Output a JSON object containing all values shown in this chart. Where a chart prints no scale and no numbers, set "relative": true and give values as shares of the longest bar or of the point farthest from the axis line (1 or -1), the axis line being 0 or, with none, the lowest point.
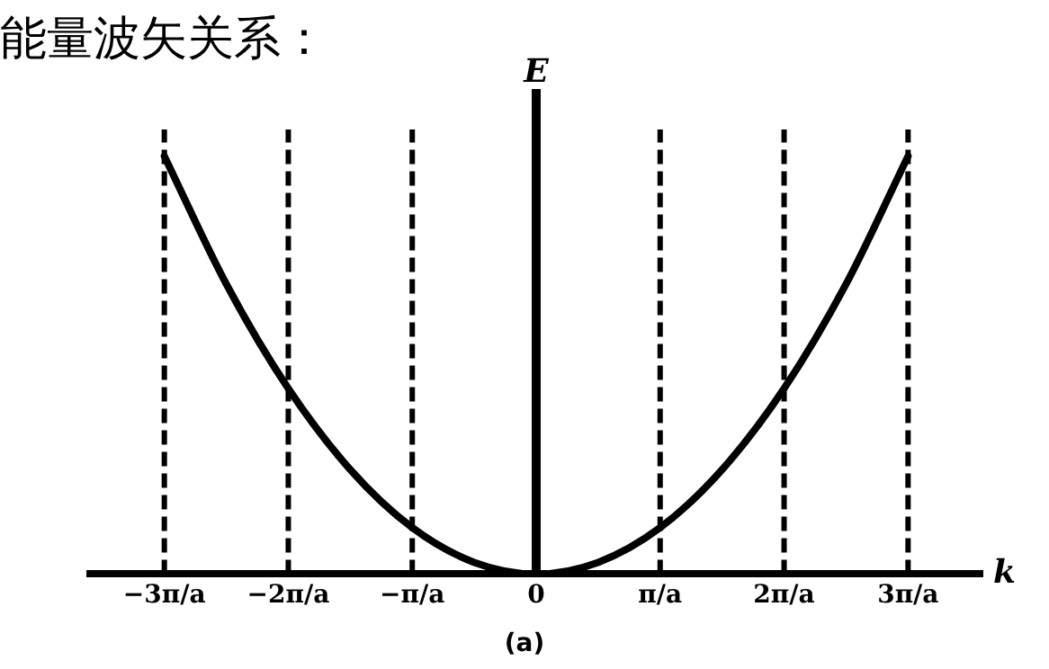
{
  "chart_data": {
    "type": "line",
    "title": "能量波矢关系：",
    "xlabel": "k",
    "ylabel": "E",
    "relative": true,
    "x": [
      -3,
      -2.5,
      -2,
      -1.5,
      -1,
      -0.5,
      0,
      0.5,
      1,
      1.5,
      2,
      2.5,
      3
    ],
    "series": [
      {
        "color": "#000000",
        "values": [
          1,
          0.694,
          0.444,
          0.25,
          0.111,
          0.028,
          0,
          0.028,
          0.111,
          0.25,
          0.444,
          0.694,
          1
        ]
      }
    ],
    "xlim": [
      -3.6,
      3.6
    ],
    "xticks": [
      {
        "value": -3,
        "label": "−3π/a"
      },
      {
        "value": -2,
        "label": "−2π/a"
      },
      {
        "value": -1,
        "label": "−π/a"
      },
      0,
      {
        "value": 1,
        "label": "π/a"
      },
      {
        "value": 2,
        "label": "2π/a"
      },
      {
        "value": 3,
        "label": "3π/a"
      }
    ],
    "ref_lines": [
      {
        "axis": "x",
        "value": -3,
        "line_style": "dashed"
      },
      {
        "axis": "x",
        "value": -2,
        "line_style": "dashed"
      },
      {
        "axis": "x",
        "value": -1,
        "line_style": "dashed"
      },
      {
        "axis": "x",
        "value": 1,
        "line_style": "dashed"
      },
      {
        "axis": "x",
        "value": 2,
        "line_style": "dashed"
      },
      {
        "axis": "x",
        "value": 3,
        "line_style": "dashed"
      }
    ],
    "annotations": [
      "(a)"
    ],
    "grid": false,
    "legend": false,
    "marker": "none",
    "line_style": "solid"
  }
}
